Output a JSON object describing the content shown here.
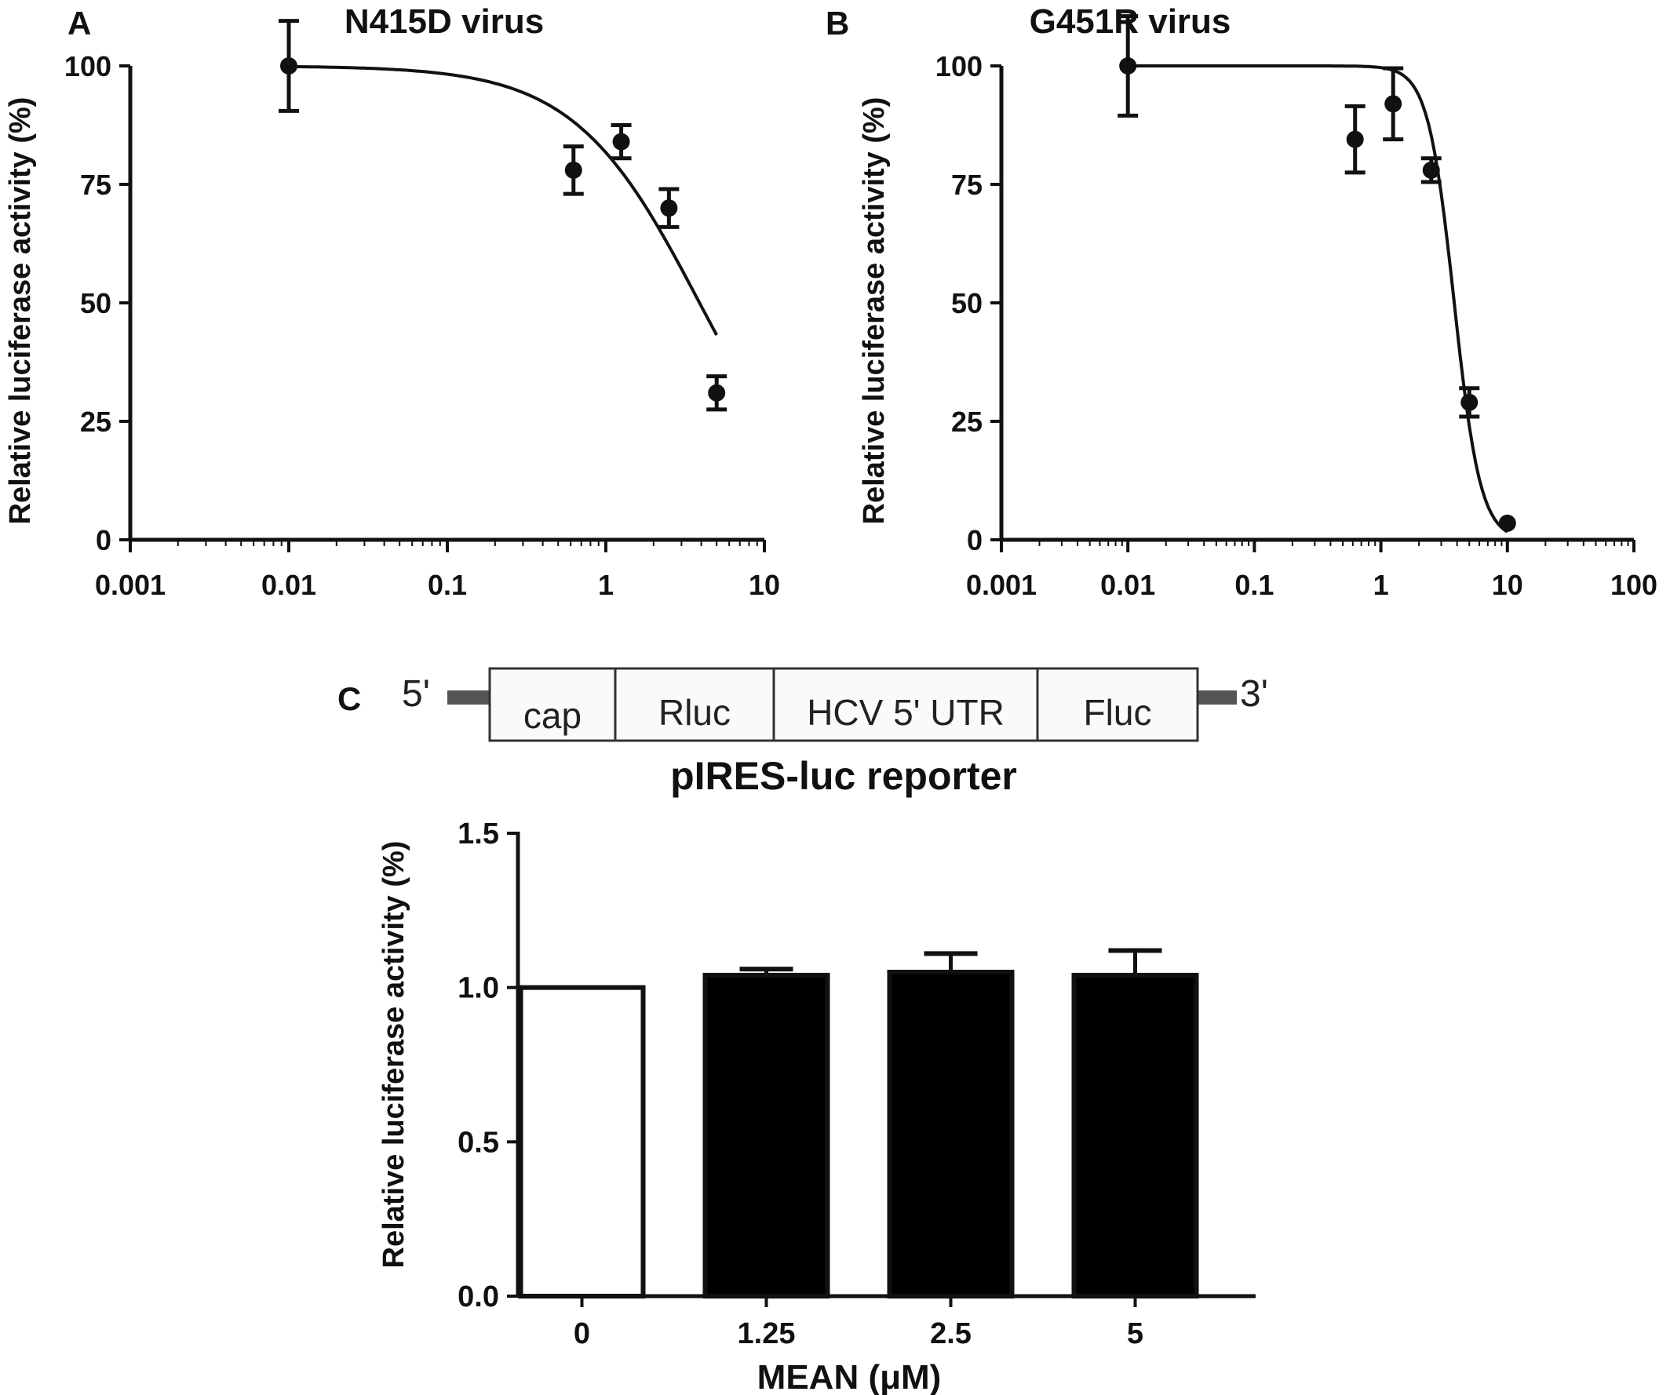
{
  "chart_data": [
    {
      "panel": "A",
      "type": "scatter",
      "title": "N415D virus",
      "ylabel": "Relative luciferase activity (%)",
      "xlabel": "",
      "x_scale": "log",
      "xlim": [
        0.001,
        10
      ],
      "ylim": [
        0,
        100
      ],
      "x_ticks": [
        "0.001",
        "0.01",
        "0.1",
        "1",
        "10"
      ],
      "y_ticks": [
        "0",
        "25",
        "50",
        "75",
        "100"
      ],
      "points": [
        {
          "x": 0.01,
          "y": 100,
          "err": 9.5
        },
        {
          "x": 0.625,
          "y": 78,
          "err": 5
        },
        {
          "x": 1.25,
          "y": 84,
          "err": 3.5
        },
        {
          "x": 2.5,
          "y": 70,
          "err": 4
        },
        {
          "x": 5,
          "y": 31,
          "err": 3.5
        }
      ],
      "fit": {
        "top": 100,
        "bottom": 0,
        "ic50": 3.9,
        "hill": 1.1,
        "x_range": [
          0.01,
          5
        ]
      },
      "grid": false
    },
    {
      "panel": "B",
      "type": "scatter",
      "title": "G451R virus",
      "ylabel": "Relative luciferase activity (%)",
      "xlabel": "",
      "x_scale": "log",
      "xlim": [
        0.001,
        100
      ],
      "ylim": [
        0,
        100
      ],
      "x_ticks": [
        "0.001",
        "0.01",
        "0.1",
        "1",
        "10",
        "100"
      ],
      "y_ticks": [
        "0",
        "25",
        "50",
        "75",
        "100"
      ],
      "points": [
        {
          "x": 0.01,
          "y": 100,
          "err": 10.5
        },
        {
          "x": 0.625,
          "y": 84.5,
          "err": 7
        },
        {
          "x": 1.25,
          "y": 92,
          "err": 7.5
        },
        {
          "x": 2.5,
          "y": 78,
          "err": 2.5
        },
        {
          "x": 5,
          "y": 29,
          "err": 3
        },
        {
          "x": 10,
          "y": 3.5,
          "err": 0
        }
      ],
      "fit": {
        "top": 100,
        "bottom": 0,
        "ic50": 3.8,
        "hill": 4.2,
        "x_range": [
          0.01,
          10
        ]
      },
      "grid": false
    },
    {
      "panel": "C",
      "type": "bar",
      "title": "pIRES-luc reporter",
      "ylabel": "Relative luciferase activity (%)",
      "xlabel": "MEAN (μM)",
      "categories": [
        "0",
        "1.25",
        "2.5",
        "5"
      ],
      "values": [
        1.0,
        1.04,
        1.05,
        1.04
      ],
      "errors": [
        0,
        0.02,
        0.06,
        0.08
      ],
      "fills": [
        "#ffffff",
        "#000000",
        "#000000",
        "#000000"
      ],
      "ylim": [
        0,
        1.5
      ],
      "y_ticks": [
        "0.0",
        "0.5",
        "1.0",
        "1.5"
      ],
      "grid": false
    }
  ],
  "construct": {
    "five_prime": "5'",
    "three_prime": "3'",
    "segments": [
      "cap",
      "Rluc",
      "HCV 5' UTR",
      "Fluc"
    ]
  },
  "panel_labels": {
    "a": "A",
    "b": "B",
    "c": "C"
  }
}
